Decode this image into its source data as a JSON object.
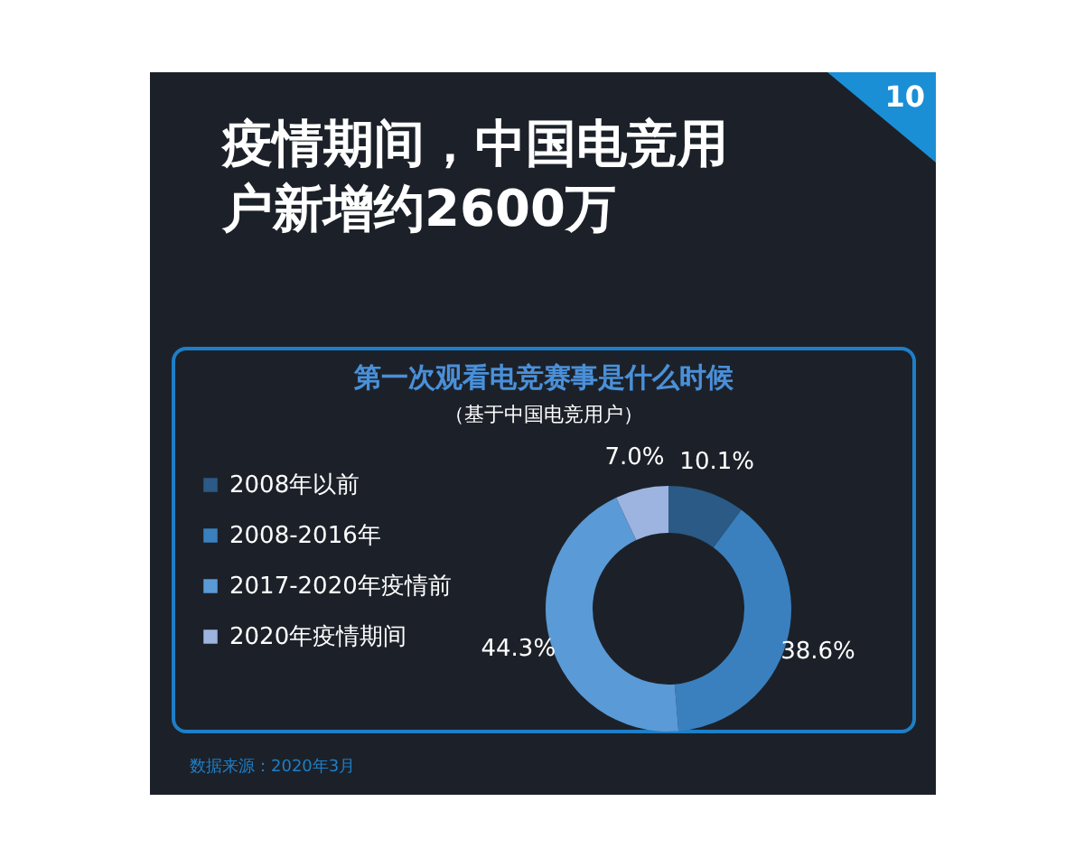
{
  "chart_data": {
    "type": "donut",
    "title": "疫情期间，中国电竞用户新增约2600万",
    "subtitle": "第一次观看电竞赛事是什么时候",
    "annotations": [
      "10",
      "（基于中国电竞用户）",
      "数据来源：2020年3月"
    ],
    "categories": [
      "2008年以前",
      "2008-2016年",
      "2017-2020年疫情前",
      "2020年疫情期间"
    ],
    "values": [
      10.1,
      38.6,
      44.3,
      7.0
    ],
    "value_labels": [
      "10.1%",
      "38.6%",
      "44.3%",
      "7.0%"
    ],
    "colors": [
      "#2a5a85",
      "#3a80bf",
      "#5a9ad6",
      "#9db4e0"
    ],
    "legend": "left"
  }
}
